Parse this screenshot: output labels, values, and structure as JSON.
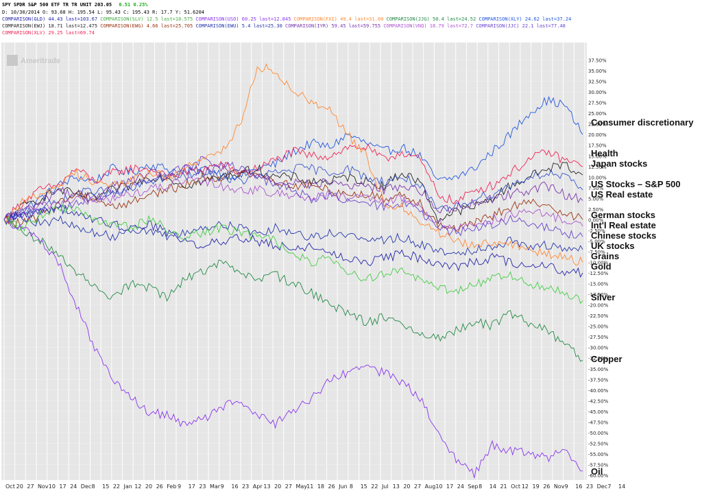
{
  "header": {
    "line1_a": "SPY SPDR S&P 500 ETF TR TR UNIT  203.05",
    "line1_b": "0.51  0.25%",
    "line2": "D: 10/30/2014  O: 93.68  H: 195.54  L: 95.43  C: 195.43  R: 17.7    Y: 51.6204",
    "line3_a": "COMPARISON(GLD) 44.43 last=103.67",
    "line3_b": "COMPARISON(SLV) 12.5 last=10.575",
    "line3_c": "COMPARISON(USO) 60.25 last=12.845",
    "line3_d": "COMPARISON(FXI) 49.4 last=31.00",
    "line3_e": "COMPARISON(JJG) 50.4 last=24.52",
    "line3_f": "COMPARISON(XLY) 24.62 last=37.24",
    "line4_a": "COMPARISON(EWJ) 18.71 last=12.475",
    "line4_b": "COMPARISON(EWG) 4.66 last=25.705",
    "line4_c": "COMPARISON(EWU) 5.4 last=25.30",
    "line4_d": "COMPARISON(IYR) 59.45 last=59.755",
    "line4_e": "COMPARISON(VNQ) 18.79 last=72.7",
    "line4_f": "COMPARISON(JJC) 22.1 last=77.48",
    "line5": "COMPARISON(XLV) 29.25 last=69.74",
    "watermark": "Ameritrade"
  },
  "colors": {
    "consumer": "#2255dd",
    "health": "#ee2255",
    "japan": "#222222",
    "sp500": "#3355cc",
    "realestate": "#7733aa",
    "german": "#993311",
    "intl_re": "#aa55cc",
    "chinese": "#6644cc",
    "uk": "#2233aa",
    "grains": "#ff8833",
    "gold": "#2222aa",
    "silver": "#44cc44",
    "copper": "#228844",
    "oil": "#8833ee",
    "grid": "#ffffff",
    "background": "#e6e6e6"
  },
  "chart_data": {
    "type": "line",
    "ylim": [
      -60,
      40
    ],
    "y_ticks": [
      "37.50%",
      "35.00%",
      "32.50%",
      "30.00%",
      "27.50%",
      "25.00%",
      "22.50%",
      "20.00%",
      "17.50%",
      "15.00%",
      "12.50%",
      "10.00%",
      "7.50%",
      "5.00%",
      "2.50%",
      "0.00%",
      "-2.50%",
      "-5.00%",
      "-7.50%",
      "-10.00%",
      "-12.50%",
      "-15.00%",
      "-17.50%",
      "-20.00%",
      "-22.50%",
      "-25.00%",
      "-27.50%",
      "-30.00%",
      "-32.50%",
      "-35.00%",
      "-37.50%",
      "-40.00%",
      "-42.50%",
      "-45.00%",
      "-47.50%",
      "-50.00%",
      "-52.50%",
      "-55.00%",
      "-57.50%",
      "-60.00%"
    ],
    "x_ticks": [
      "Oct",
      "20",
      "27",
      "Nov",
      "10",
      "17",
      "24",
      "Dec",
      "8",
      "15",
      "22",
      "Jan",
      "12",
      "20",
      "26",
      "Feb",
      "9",
      "17",
      "23",
      "Mar",
      "9",
      "16",
      "23",
      "Apr",
      "13",
      "20",
      "27",
      "May",
      "11",
      "18",
      "26",
      "Jun",
      "8",
      "15",
      "22",
      "Jul",
      "13",
      "20",
      "27",
      "Aug",
      "10",
      "17",
      "24",
      "Sep",
      "8",
      "14",
      "21",
      "Oct",
      "12",
      "19",
      "26",
      "Nov",
      "9",
      "16",
      "23",
      "Dec",
      "7",
      "14"
    ],
    "series": [
      {
        "name": "Consumer discretionary",
        "key": "consumer",
        "last": 20,
        "values": [
          0,
          2,
          5,
          8,
          10,
          9,
          12,
          11,
          13,
          12,
          11,
          12,
          11,
          10,
          12,
          13,
          16,
          18,
          17,
          20,
          18,
          16,
          17,
          15,
          9,
          10,
          12,
          16,
          20,
          25,
          28,
          27,
          20
        ]
      },
      {
        "name": "Health",
        "key": "health",
        "last": 12.5,
        "values": [
          0,
          4,
          7,
          8,
          12,
          9,
          11,
          12,
          12,
          10,
          11,
          12,
          13,
          11,
          12,
          14,
          16,
          15,
          15,
          17,
          17,
          14,
          16,
          14,
          6,
          4,
          7,
          8,
          11,
          14,
          16,
          14,
          12.5
        ]
      },
      {
        "name": "Japan stocks",
        "key": "japan",
        "last": 10.5,
        "values": [
          0,
          3,
          5,
          7,
          6,
          5,
          7,
          8,
          10,
          10,
          8,
          9,
          10,
          11,
          12,
          10,
          10,
          9,
          9,
          10,
          9,
          8,
          11,
          9,
          0,
          2,
          3,
          5,
          8,
          10,
          12,
          13,
          10.5
        ]
      },
      {
        "name": "US Stocks – S&P 500",
        "key": "sp500",
        "last": 7,
        "values": [
          0,
          2,
          3,
          4,
          6,
          7,
          6,
          7,
          9,
          10,
          10,
          11,
          10,
          9,
          10,
          11,
          12,
          12,
          11,
          12,
          10,
          9,
          10,
          8,
          2,
          3,
          5,
          6,
          8,
          10,
          11,
          10,
          7
        ]
      },
      {
        "name": "US Real estate",
        "key": "realestate",
        "last": 4.5,
        "values": [
          0,
          2,
          4,
          7,
          6,
          5,
          8,
          9,
          11,
          10,
          12,
          11,
          12,
          11,
          11,
          9,
          9,
          8,
          9,
          8,
          8,
          7,
          8,
          7,
          2,
          3,
          4,
          5,
          6,
          7,
          8,
          6,
          4.5
        ]
      },
      {
        "name": "German stocks",
        "key": "german",
        "last": 0,
        "values": [
          0,
          -1,
          1,
          4,
          6,
          5,
          3,
          4,
          6,
          7,
          8,
          10,
          10,
          11,
          11,
          9,
          8,
          8,
          7,
          6,
          6,
          5,
          6,
          4,
          -1,
          -2,
          -1,
          1,
          3,
          4,
          3,
          2,
          0
        ]
      },
      {
        "name": "Int'l Real estate",
        "key": "intl_re",
        "last": -1.5,
        "values": [
          0,
          2,
          3,
          4,
          5,
          4,
          5,
          6,
          7,
          8,
          9,
          9,
          8,
          7,
          7,
          6,
          6,
          5,
          6,
          5,
          5,
          4,
          5,
          3,
          -1,
          -2,
          -1,
          0,
          1,
          2,
          1,
          0,
          -1.5
        ]
      },
      {
        "name": "Chinese stocks",
        "key": "chinese",
        "last": -4,
        "values": [
          0,
          1,
          2,
          3,
          4,
          5,
          6,
          8,
          9,
          11,
          12,
          14,
          13,
          12,
          10,
          8,
          7,
          5,
          6,
          4,
          4,
          3,
          4,
          2,
          -2,
          -3,
          -2,
          -1,
          0,
          -1,
          -2,
          -3,
          -4
        ]
      },
      {
        "name": "UK stocks",
        "key": "uk",
        "last": -7,
        "values": [
          0,
          1,
          -1,
          0,
          -2,
          -3,
          -4,
          -2,
          -3,
          -4,
          -3,
          -2,
          -1,
          -2,
          -3,
          -2,
          -3,
          -4,
          -3,
          -4,
          -4,
          -5,
          -4,
          -6,
          -7,
          -8,
          -7,
          -6,
          -5,
          -6,
          -6,
          -7,
          -7
        ]
      },
      {
        "name": "Grains",
        "key": "grains",
        "last": -10,
        "values": [
          0,
          4,
          6,
          8,
          11,
          9,
          8,
          9,
          11,
          10,
          12,
          14,
          16,
          22,
          36,
          35,
          30,
          28,
          26,
          20,
          15,
          4,
          3,
          0,
          -3,
          -5,
          -6,
          -5,
          -6,
          -7,
          -8,
          -9,
          -10
        ]
      },
      {
        "name": "Gold",
        "key": "gold",
        "last": -12.5,
        "values": [
          0,
          1,
          2,
          3,
          1,
          0,
          -1,
          -2,
          -1,
          -3,
          -5,
          -6,
          -5,
          -4,
          -5,
          -6,
          -7,
          -6,
          -8,
          -9,
          -10,
          -9,
          -8,
          -9,
          -10,
          -11,
          -10,
          -9,
          -10,
          -11,
          -11,
          -12,
          -12.5
        ]
      },
      {
        "name": "Silver",
        "key": "silver",
        "last": -19,
        "values": [
          0,
          -2,
          1,
          3,
          2,
          0,
          -1,
          -2,
          0,
          -2,
          -4,
          -3,
          -2,
          -3,
          -4,
          -5,
          -8,
          -10,
          -9,
          -12,
          -14,
          -13,
          -12,
          -14,
          -16,
          -17,
          -15,
          -14,
          -13,
          -15,
          -16,
          -17,
          -19
        ]
      },
      {
        "name": "Copper",
        "key": "copper",
        "last": -33,
        "values": [
          0,
          -3,
          -5,
          -8,
          -12,
          -16,
          -18,
          -15,
          -16,
          -18,
          -14,
          -12,
          -10,
          -12,
          -14,
          -13,
          -15,
          -17,
          -20,
          -22,
          -24,
          -23,
          -25,
          -27,
          -28,
          -26,
          -24,
          -25,
          -22,
          -24,
          -26,
          -29,
          -33
        ]
      },
      {
        "name": "Oil",
        "key": "oil",
        "last": -59,
        "values": [
          0,
          -2,
          -5,
          -10,
          -20,
          -30,
          -38,
          -42,
          -45,
          -46,
          -48,
          -47,
          -44,
          -42,
          -46,
          -48,
          -45,
          -42,
          -38,
          -36,
          -35,
          -36,
          -38,
          -42,
          -50,
          -56,
          -60,
          -53,
          -54,
          -55,
          -56,
          -54,
          -59
        ]
      }
    ]
  }
}
